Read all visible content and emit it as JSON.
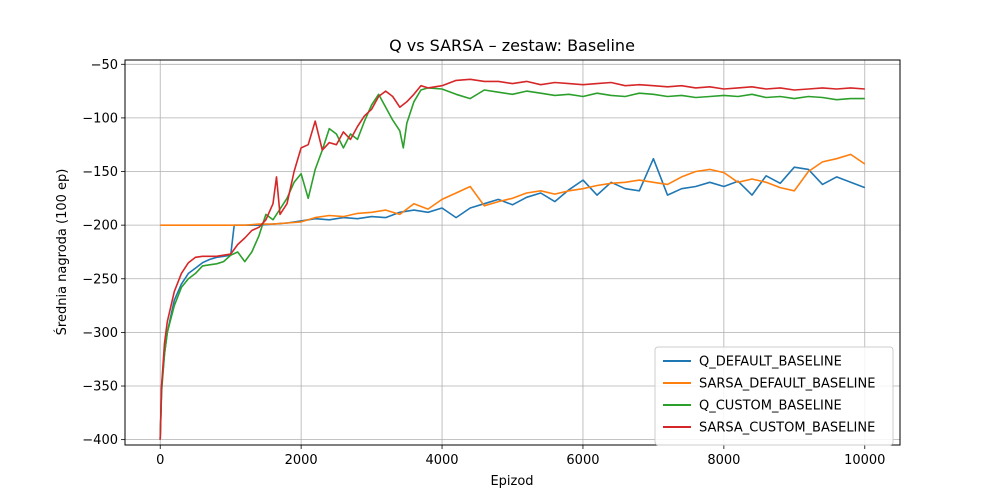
{
  "chart_data": {
    "type": "line",
    "title": "Q vs SARSA – zestaw: Baseline",
    "xlabel": "Epizod",
    "ylabel": "Średnia nagroda (100 ep)",
    "xlim": [
      -500,
      10500
    ],
    "ylim": [
      -405,
      -46
    ],
    "xticks": [
      0,
      2000,
      4000,
      6000,
      8000,
      10000
    ],
    "yticks": [
      -400,
      -350,
      -300,
      -250,
      -200,
      -150,
      -100,
      -50
    ],
    "grid": true,
    "legend_position": "lower-right",
    "series": [
      {
        "name": "Q_DEFAULT_BASELINE",
        "color": "#1f77b4",
        "points": [
          [
            0,
            -400
          ],
          [
            20,
            -350
          ],
          [
            60,
            -320
          ],
          [
            100,
            -300
          ],
          [
            200,
            -270
          ],
          [
            300,
            -255
          ],
          [
            400,
            -245
          ],
          [
            500,
            -240
          ],
          [
            600,
            -235
          ],
          [
            700,
            -232
          ],
          [
            800,
            -230
          ],
          [
            900,
            -229
          ],
          [
            1000,
            -228
          ],
          [
            1050,
            -200
          ],
          [
            1200,
            -200
          ],
          [
            1400,
            -200
          ],
          [
            1600,
            -199
          ],
          [
            1800,
            -198
          ],
          [
            2000,
            -196
          ],
          [
            2200,
            -194
          ],
          [
            2400,
            -195
          ],
          [
            2600,
            -193
          ],
          [
            2800,
            -194
          ],
          [
            3000,
            -192
          ],
          [
            3200,
            -193
          ],
          [
            3400,
            -188
          ],
          [
            3600,
            -186
          ],
          [
            3800,
            -188
          ],
          [
            4000,
            -184
          ],
          [
            4200,
            -193
          ],
          [
            4400,
            -184
          ],
          [
            4600,
            -180
          ],
          [
            4800,
            -176
          ],
          [
            5000,
            -181
          ],
          [
            5200,
            -174
          ],
          [
            5400,
            -170
          ],
          [
            5600,
            -178
          ],
          [
            5800,
            -167
          ],
          [
            6000,
            -158
          ],
          [
            6200,
            -172
          ],
          [
            6400,
            -160
          ],
          [
            6600,
            -166
          ],
          [
            6800,
            -168
          ],
          [
            7000,
            -138
          ],
          [
            7200,
            -172
          ],
          [
            7400,
            -166
          ],
          [
            7600,
            -164
          ],
          [
            7800,
            -160
          ],
          [
            8000,
            -164
          ],
          [
            8200,
            -159
          ],
          [
            8400,
            -172
          ],
          [
            8600,
            -154
          ],
          [
            8800,
            -161
          ],
          [
            9000,
            -146
          ],
          [
            9200,
            -148
          ],
          [
            9400,
            -162
          ],
          [
            9600,
            -155
          ],
          [
            9800,
            -160
          ],
          [
            10000,
            -165
          ]
        ]
      },
      {
        "name": "SARSA_DEFAULT_BASELINE",
        "color": "#ff7f0e",
        "points": [
          [
            0,
            -200
          ],
          [
            200,
            -200
          ],
          [
            400,
            -200
          ],
          [
            600,
            -200
          ],
          [
            800,
            -200
          ],
          [
            1000,
            -200
          ],
          [
            1200,
            -200
          ],
          [
            1400,
            -199
          ],
          [
            1600,
            -199
          ],
          [
            1800,
            -198
          ],
          [
            2000,
            -197
          ],
          [
            2200,
            -193
          ],
          [
            2400,
            -191
          ],
          [
            2600,
            -192
          ],
          [
            2800,
            -189
          ],
          [
            3000,
            -188
          ],
          [
            3200,
            -186
          ],
          [
            3400,
            -190
          ],
          [
            3600,
            -180
          ],
          [
            3800,
            -185
          ],
          [
            4000,
            -176
          ],
          [
            4200,
            -170
          ],
          [
            4400,
            -164
          ],
          [
            4600,
            -182
          ],
          [
            4800,
            -178
          ],
          [
            5000,
            -175
          ],
          [
            5200,
            -170
          ],
          [
            5400,
            -168
          ],
          [
            5600,
            -171
          ],
          [
            5800,
            -168
          ],
          [
            6000,
            -166
          ],
          [
            6200,
            -163
          ],
          [
            6400,
            -161
          ],
          [
            6600,
            -160
          ],
          [
            6800,
            -158
          ],
          [
            7000,
            -160
          ],
          [
            7200,
            -162
          ],
          [
            7400,
            -155
          ],
          [
            7600,
            -150
          ],
          [
            7800,
            -148
          ],
          [
            8000,
            -151
          ],
          [
            8200,
            -160
          ],
          [
            8400,
            -157
          ],
          [
            8600,
            -160
          ],
          [
            8800,
            -165
          ],
          [
            9000,
            -168
          ],
          [
            9200,
            -150
          ],
          [
            9400,
            -141
          ],
          [
            9600,
            -138
          ],
          [
            9800,
            -134
          ],
          [
            10000,
            -143
          ]
        ]
      },
      {
        "name": "Q_CUSTOM_BASELINE",
        "color": "#2ca02c",
        "points": [
          [
            0,
            -400
          ],
          [
            20,
            -355
          ],
          [
            60,
            -320
          ],
          [
            100,
            -300
          ],
          [
            200,
            -275
          ],
          [
            300,
            -258
          ],
          [
            400,
            -250
          ],
          [
            500,
            -245
          ],
          [
            600,
            -238
          ],
          [
            700,
            -237
          ],
          [
            800,
            -236
          ],
          [
            900,
            -234
          ],
          [
            1000,
            -228
          ],
          [
            1100,
            -225
          ],
          [
            1200,
            -234
          ],
          [
            1300,
            -225
          ],
          [
            1400,
            -210
          ],
          [
            1500,
            -190
          ],
          [
            1600,
            -195
          ],
          [
            1700,
            -185
          ],
          [
            1800,
            -175
          ],
          [
            1900,
            -160
          ],
          [
            2000,
            -152
          ],
          [
            2100,
            -175
          ],
          [
            2200,
            -148
          ],
          [
            2300,
            -130
          ],
          [
            2400,
            -110
          ],
          [
            2500,
            -115
          ],
          [
            2600,
            -128
          ],
          [
            2700,
            -115
          ],
          [
            2800,
            -120
          ],
          [
            2900,
            -103
          ],
          [
            3000,
            -88
          ],
          [
            3100,
            -78
          ],
          [
            3200,
            -90
          ],
          [
            3300,
            -102
          ],
          [
            3400,
            -112
          ],
          [
            3450,
            -128
          ],
          [
            3500,
            -105
          ],
          [
            3600,
            -85
          ],
          [
            3700,
            -74
          ],
          [
            3800,
            -72
          ],
          [
            4000,
            -73
          ],
          [
            4200,
            -78
          ],
          [
            4400,
            -82
          ],
          [
            4600,
            -74
          ],
          [
            4800,
            -76
          ],
          [
            5000,
            -78
          ],
          [
            5200,
            -75
          ],
          [
            5400,
            -77
          ],
          [
            5600,
            -79
          ],
          [
            5800,
            -78
          ],
          [
            6000,
            -80
          ],
          [
            6200,
            -77
          ],
          [
            6400,
            -79
          ],
          [
            6600,
            -80
          ],
          [
            6800,
            -77
          ],
          [
            7000,
            -78
          ],
          [
            7200,
            -80
          ],
          [
            7400,
            -79
          ],
          [
            7600,
            -81
          ],
          [
            7800,
            -80
          ],
          [
            8000,
            -79
          ],
          [
            8200,
            -80
          ],
          [
            8400,
            -78
          ],
          [
            8600,
            -81
          ],
          [
            8800,
            -80
          ],
          [
            9000,
            -82
          ],
          [
            9200,
            -80
          ],
          [
            9400,
            -81
          ],
          [
            9600,
            -83
          ],
          [
            9800,
            -82
          ],
          [
            10000,
            -82
          ]
        ]
      },
      {
        "name": "SARSA_CUSTOM_BASELINE",
        "color": "#d62728",
        "points": [
          [
            0,
            -400
          ],
          [
            20,
            -350
          ],
          [
            60,
            -310
          ],
          [
            100,
            -290
          ],
          [
            200,
            -262
          ],
          [
            300,
            -245
          ],
          [
            400,
            -235
          ],
          [
            500,
            -230
          ],
          [
            600,
            -229
          ],
          [
            700,
            -229
          ],
          [
            800,
            -229
          ],
          [
            900,
            -228
          ],
          [
            1000,
            -227
          ],
          [
            1100,
            -218
          ],
          [
            1200,
            -212
          ],
          [
            1300,
            -205
          ],
          [
            1400,
            -202
          ],
          [
            1500,
            -195
          ],
          [
            1600,
            -180
          ],
          [
            1650,
            -155
          ],
          [
            1700,
            -190
          ],
          [
            1800,
            -180
          ],
          [
            1900,
            -150
          ],
          [
            2000,
            -128
          ],
          [
            2100,
            -125
          ],
          [
            2200,
            -103
          ],
          [
            2300,
            -130
          ],
          [
            2400,
            -123
          ],
          [
            2500,
            -125
          ],
          [
            2600,
            -113
          ],
          [
            2700,
            -120
          ],
          [
            2800,
            -108
          ],
          [
            2900,
            -98
          ],
          [
            3000,
            -92
          ],
          [
            3100,
            -80
          ],
          [
            3200,
            -75
          ],
          [
            3300,
            -80
          ],
          [
            3400,
            -90
          ],
          [
            3500,
            -85
          ],
          [
            3600,
            -78
          ],
          [
            3700,
            -70
          ],
          [
            3800,
            -72
          ],
          [
            4000,
            -70
          ],
          [
            4200,
            -65
          ],
          [
            4400,
            -64
          ],
          [
            4600,
            -66
          ],
          [
            4800,
            -66
          ],
          [
            5000,
            -68
          ],
          [
            5200,
            -66
          ],
          [
            5400,
            -69
          ],
          [
            5600,
            -67
          ],
          [
            5800,
            -68
          ],
          [
            6000,
            -69
          ],
          [
            6200,
            -68
          ],
          [
            6400,
            -67
          ],
          [
            6600,
            -70
          ],
          [
            6800,
            -69
          ],
          [
            7000,
            -70
          ],
          [
            7200,
            -71
          ],
          [
            7400,
            -70
          ],
          [
            7600,
            -72
          ],
          [
            7800,
            -71
          ],
          [
            8000,
            -73
          ],
          [
            8200,
            -72
          ],
          [
            8400,
            -71
          ],
          [
            8600,
            -73
          ],
          [
            8800,
            -72
          ],
          [
            9000,
            -74
          ],
          [
            9200,
            -73
          ],
          [
            9400,
            -72
          ],
          [
            9600,
            -73
          ],
          [
            9800,
            -72
          ],
          [
            10000,
            -73
          ]
        ]
      }
    ]
  }
}
